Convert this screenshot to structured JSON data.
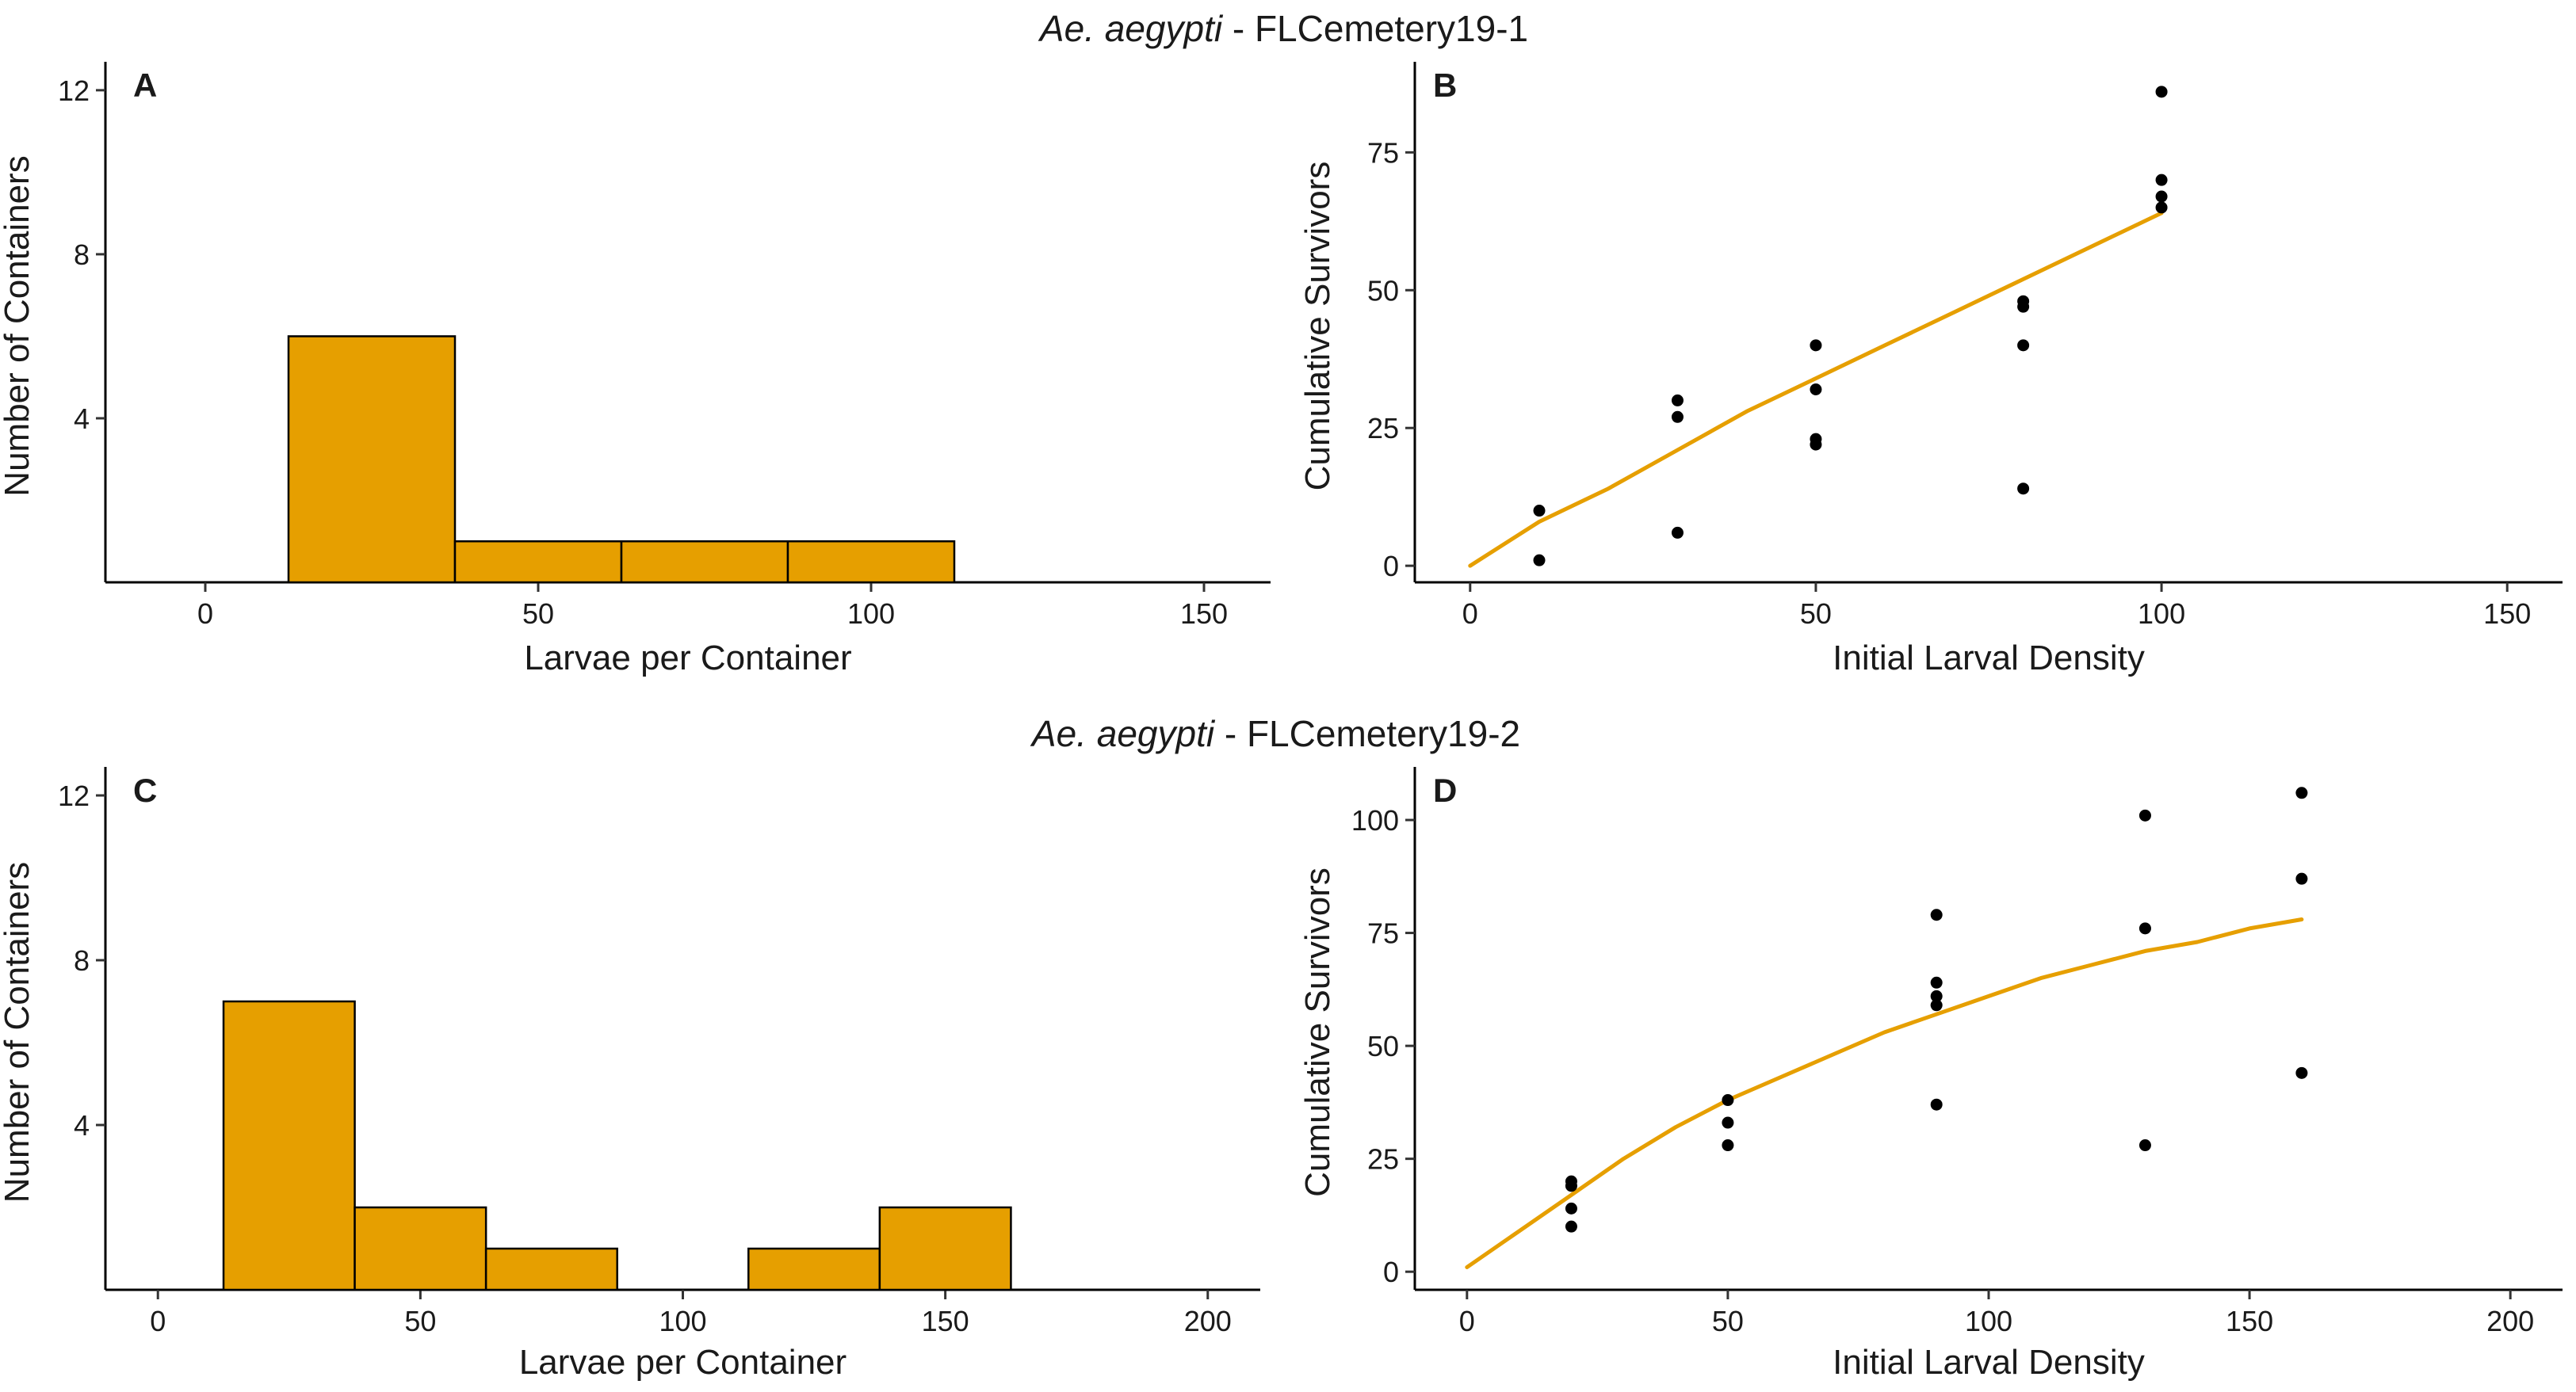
{
  "colors": {
    "bar_fill": "#E69F00",
    "line": "#E69F00",
    "point": "#000000"
  },
  "figure_titles": [
    {
      "italic": "Ae. aegypti",
      "rest": " - FLCemetery19-1"
    },
    {
      "italic": "Ae. aegypti",
      "rest": " - FLCemetery19-2"
    }
  ],
  "chart_data": [
    {
      "panel": "A",
      "type": "bar",
      "xlabel": "Larvae per Container",
      "ylabel": "Number of Containers",
      "xlim": [
        -15,
        160
      ],
      "ylim": [
        0,
        12.5
      ],
      "xticks": [
        0,
        50,
        100,
        150
      ],
      "yticks": [
        4,
        8,
        12
      ],
      "bins": [
        {
          "x0": 12.5,
          "x1": 37.5,
          "count": 6
        },
        {
          "x0": 37.5,
          "x1": 62.5,
          "count": 1
        },
        {
          "x0": 62.5,
          "x1": 87.5,
          "count": 1
        },
        {
          "x0": 87.5,
          "x1": 112.5,
          "count": 1
        }
      ]
    },
    {
      "panel": "B",
      "type": "scatter",
      "xlabel": "Initial Larval Density",
      "ylabel": "Cumulative Survivors",
      "xlim": [
        -8,
        158
      ],
      "ylim": [
        -3,
        90
      ],
      "xticks": [
        0,
        50,
        100,
        150
      ],
      "yticks": [
        0,
        25,
        50,
        75
      ],
      "points": [
        [
          10,
          1
        ],
        [
          10,
          10
        ],
        [
          30,
          6
        ],
        [
          30,
          27
        ],
        [
          30,
          30
        ],
        [
          50,
          22
        ],
        [
          50,
          23
        ],
        [
          50,
          32
        ],
        [
          50,
          40
        ],
        [
          80,
          14
        ],
        [
          80,
          40
        ],
        [
          80,
          47
        ],
        [
          80,
          48
        ],
        [
          100,
          65
        ],
        [
          100,
          67
        ],
        [
          100,
          70
        ],
        [
          100,
          86
        ]
      ],
      "fit_line": [
        [
          0,
          0
        ],
        [
          10,
          8
        ],
        [
          20,
          14
        ],
        [
          30,
          21
        ],
        [
          40,
          28
        ],
        [
          50,
          34
        ],
        [
          60,
          40
        ],
        [
          70,
          46
        ],
        [
          80,
          52
        ],
        [
          90,
          58
        ],
        [
          100,
          64
        ]
      ]
    },
    {
      "panel": "C",
      "type": "bar",
      "xlabel": "Larvae per Container",
      "ylabel": "Number of Containers",
      "xlim": [
        -10,
        210
      ],
      "ylim": [
        0,
        12.5
      ],
      "xticks": [
        0,
        50,
        100,
        150,
        200
      ],
      "yticks": [
        4,
        8,
        12
      ],
      "bins": [
        {
          "x0": 12.5,
          "x1": 37.5,
          "count": 7
        },
        {
          "x0": 37.5,
          "x1": 62.5,
          "count": 2
        },
        {
          "x0": 62.5,
          "x1": 87.5,
          "count": 1
        },
        {
          "x0": 112.5,
          "x1": 137.5,
          "count": 1
        },
        {
          "x0": 137.5,
          "x1": 162.5,
          "count": 2
        }
      ]
    },
    {
      "panel": "D",
      "type": "scatter",
      "xlabel": "Initial Larval Density",
      "ylabel": "Cumulative Survivors",
      "xlim": [
        -10,
        210
      ],
      "ylim": [
        -4,
        110
      ],
      "xticks": [
        0,
        50,
        100,
        150,
        200
      ],
      "yticks": [
        0,
        25,
        50,
        75,
        100
      ],
      "points": [
        [
          20,
          10
        ],
        [
          20,
          14
        ],
        [
          20,
          19
        ],
        [
          20,
          20
        ],
        [
          50,
          28
        ],
        [
          50,
          33
        ],
        [
          50,
          38
        ],
        [
          90,
          37
        ],
        [
          90,
          59
        ],
        [
          90,
          61
        ],
        [
          90,
          64
        ],
        [
          90,
          79
        ],
        [
          130,
          28
        ],
        [
          130,
          76
        ],
        [
          130,
          101
        ],
        [
          160,
          44
        ],
        [
          160,
          87
        ],
        [
          160,
          106
        ]
      ],
      "fit_line": [
        [
          0,
          1
        ],
        [
          10,
          9
        ],
        [
          20,
          17
        ],
        [
          30,
          25
        ],
        [
          40,
          32
        ],
        [
          50,
          38
        ],
        [
          60,
          43
        ],
        [
          70,
          48
        ],
        [
          80,
          53
        ],
        [
          90,
          57
        ],
        [
          100,
          61
        ],
        [
          110,
          65
        ],
        [
          120,
          68
        ],
        [
          130,
          71
        ],
        [
          140,
          73
        ],
        [
          150,
          76
        ],
        [
          160,
          78
        ]
      ]
    }
  ]
}
